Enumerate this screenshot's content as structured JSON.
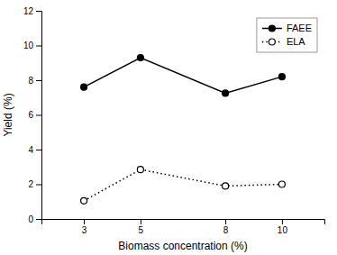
{
  "chart_data": {
    "type": "line",
    "xlabel": "Biomass concentration (%)",
    "ylabel": "Yield (%)",
    "x": [
      3,
      5,
      8,
      10
    ],
    "series": [
      {
        "name": "FAEE",
        "color": "#000000",
        "line_style": "solid",
        "marker": "circle",
        "values": [
          7.6,
          9.3,
          7.25,
          8.2
        ]
      },
      {
        "name": "ELA",
        "color": "#000000",
        "line_style": "dotted",
        "marker": "circle-open",
        "values": [
          1.05,
          2.85,
          1.9,
          2.0
        ]
      }
    ],
    "xlim": [
      1.5,
      11.5
    ],
    "xticks": [
      3,
      5,
      8,
      10
    ],
    "ylim": [
      0,
      12
    ],
    "yticks": [
      0,
      2,
      4,
      6,
      8,
      10,
      12
    ],
    "grid": false,
    "legend": "upper-right"
  }
}
